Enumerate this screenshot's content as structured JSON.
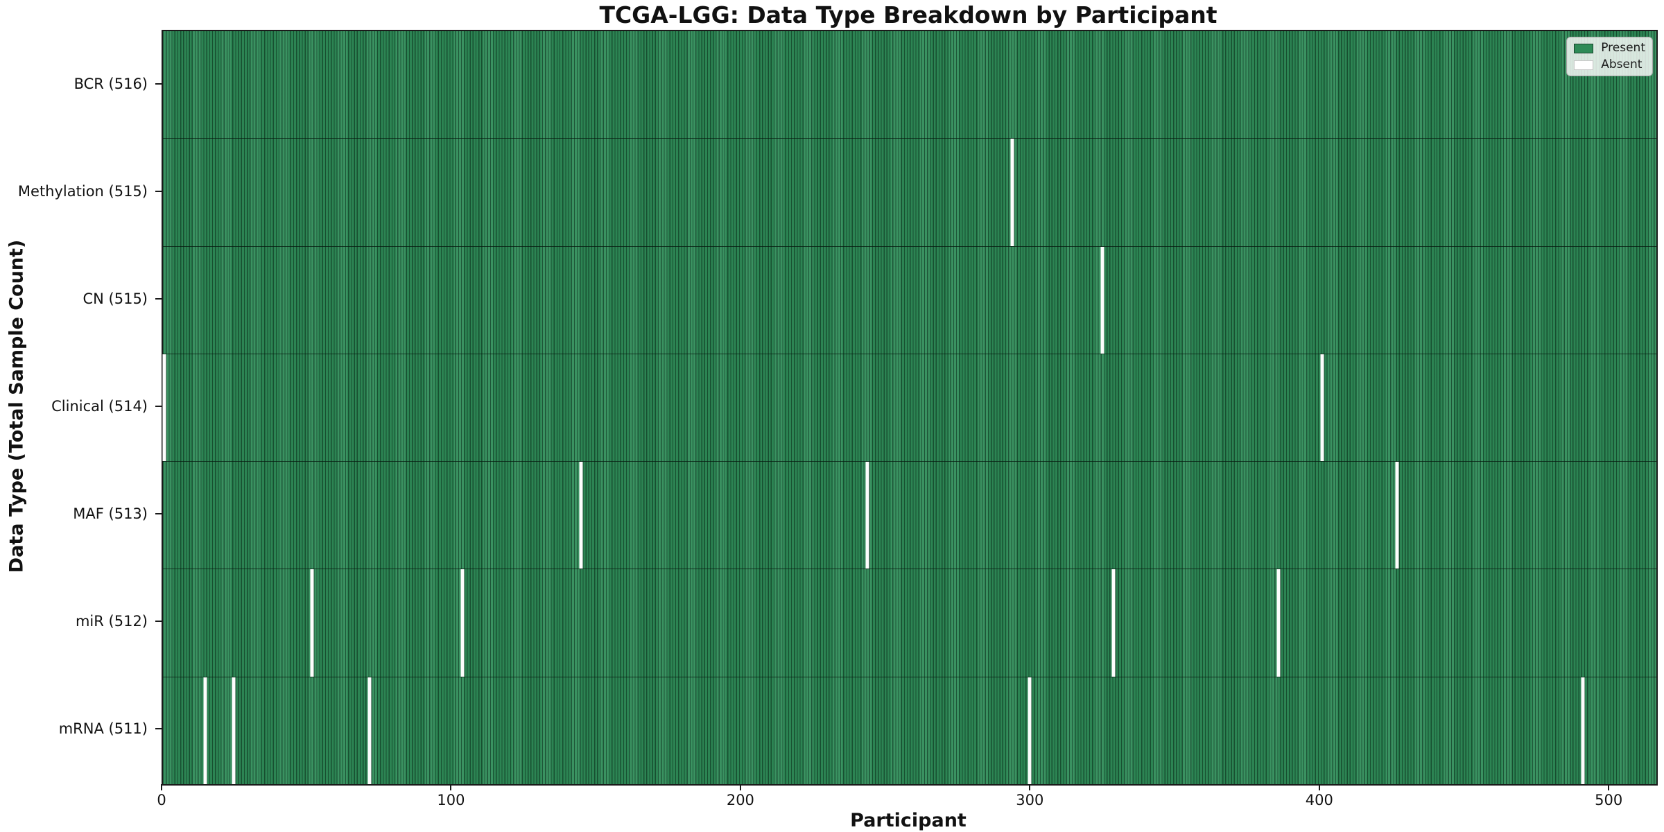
{
  "figure": {
    "background": "#ffffff"
  },
  "chart_data": {
    "type": "heatmap",
    "title": "TCGA-LGG: Data Type Breakdown by Participant",
    "xlabel": "Participant",
    "ylabel": "Data Type (Total Sample Count)",
    "xlim": [
      0,
      516
    ],
    "x_ticks": [
      0,
      100,
      200,
      300,
      400,
      500
    ],
    "total_participants": 516,
    "grid": false,
    "legend_position": "upper right",
    "legend": [
      {
        "label": "Present",
        "color": "#2e8b57"
      },
      {
        "label": "Absent",
        "color": "#ffffff"
      }
    ],
    "rows": [
      {
        "label": "BCR (516)",
        "data_type": "BCR",
        "total_samples": 516,
        "absent_participants": []
      },
      {
        "label": "Methylation (515)",
        "data_type": "Methylation",
        "total_samples": 515,
        "absent_participants": [
          293
        ]
      },
      {
        "label": "CN (515)",
        "data_type": "CN",
        "total_samples": 515,
        "absent_participants": [
          324
        ]
      },
      {
        "label": "Clinical (514)",
        "data_type": "Clinical",
        "total_samples": 514,
        "absent_participants": [
          0,
          400
        ]
      },
      {
        "label": "MAF (513)",
        "data_type": "MAF",
        "total_samples": 513,
        "absent_participants": [
          144,
          243,
          426
        ]
      },
      {
        "label": "miR (512)",
        "data_type": "miR",
        "total_samples": 512,
        "absent_participants": [
          51,
          103,
          328,
          385
        ]
      },
      {
        "label": "mRNA (511)",
        "data_type": "mRNA",
        "total_samples": 511,
        "absent_participants": [
          14,
          24,
          71,
          299,
          490
        ]
      }
    ],
    "colors": {
      "present": "#2e8b57",
      "absent": "#ffffff",
      "bar_edge": "#123a24",
      "axis": "#1a1a1a"
    }
  }
}
